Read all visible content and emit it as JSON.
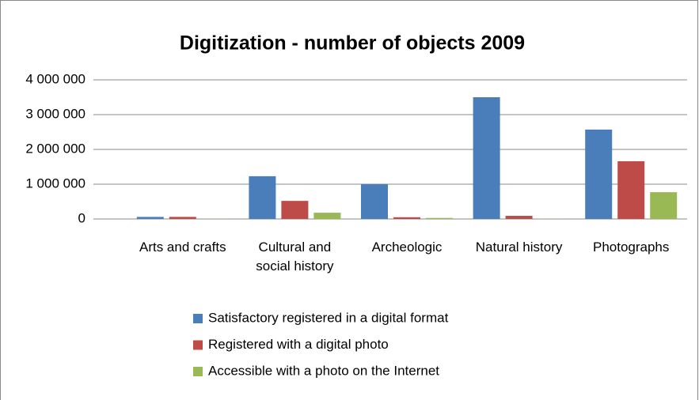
{
  "chart_data": {
    "type": "bar",
    "title": "Digitization - number of objects 2009",
    "categories": [
      "Arts and crafts",
      "Cultural and social history",
      "Archeologic",
      "Natural history",
      "Photographs"
    ],
    "series": [
      {
        "name": "Satisfactory registered in a digital format",
        "color": "#4a7ebb",
        "values": [
          60000,
          1230000,
          1000000,
          3500000,
          2570000
        ]
      },
      {
        "name": "Registered with a digital photo",
        "color": "#be4b48",
        "values": [
          60000,
          520000,
          50000,
          90000,
          1660000
        ]
      },
      {
        "name": "Accessible with a photo on the Internet",
        "color": "#98b954",
        "values": [
          5000,
          180000,
          30000,
          5000,
          770000
        ]
      }
    ],
    "ylim": [
      0,
      4000000
    ],
    "yticks": [
      0,
      {
        "value": 1000000,
        "label": "1 000 000"
      },
      {
        "value": 2000000,
        "label": "2 000 000"
      },
      {
        "value": 3000000,
        "label": "3 000 000"
      },
      {
        "value": 4000000,
        "label": "4 000 000"
      }
    ],
    "grid": true,
    "legend": "bottom"
  }
}
